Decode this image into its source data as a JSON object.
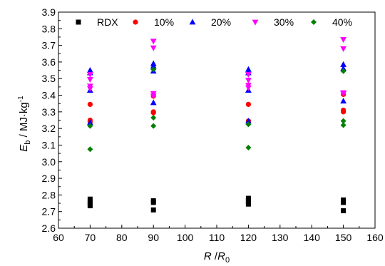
{
  "chart_data": {
    "type": "scatter",
    "xlabel": {
      "main": "R",
      "sep": " /",
      "sub_main": "R",
      "sub": "0"
    },
    "ylabel": {
      "main": "E",
      "sub": "b",
      "unit": " / MJ·kg",
      "sup": "-1"
    },
    "xlim": [
      60,
      160
    ],
    "ylim": [
      2.6,
      3.9
    ],
    "xticks": [
      60,
      70,
      80,
      90,
      100,
      110,
      120,
      130,
      140,
      150,
      160
    ],
    "yticks": [
      "2.6",
      "2.7",
      "2.8",
      "2.9",
      "3.0",
      "3.1",
      "3.2",
      "3.3",
      "3.4",
      "3.5",
      "3.6",
      "3.7",
      "3.8",
      "3.9"
    ],
    "legend_position": "top",
    "series": [
      {
        "name": "RDX",
        "marker": "square",
        "color": "#000000",
        "points": [
          [
            70,
            2.775
          ],
          [
            70,
            2.76
          ],
          [
            70,
            2.745
          ],
          [
            70,
            2.735
          ],
          [
            90,
            2.765
          ],
          [
            90,
            2.755
          ],
          [
            90,
            2.71
          ],
          [
            120,
            2.78
          ],
          [
            120,
            2.77
          ],
          [
            120,
            2.755
          ],
          [
            120,
            2.745
          ],
          [
            150,
            2.77
          ],
          [
            150,
            2.755
          ],
          [
            150,
            2.705
          ]
        ]
      },
      {
        "name": "10%",
        "marker": "circle",
        "color": "#ff0000",
        "points": [
          [
            70,
            3.345
          ],
          [
            70,
            3.25
          ],
          [
            70,
            3.24
          ],
          [
            90,
            3.395
          ],
          [
            90,
            3.3
          ],
          [
            90,
            3.295
          ],
          [
            120,
            3.345
          ],
          [
            120,
            3.245
          ],
          [
            150,
            3.405
          ],
          [
            150,
            3.31
          ],
          [
            150,
            3.3
          ]
        ]
      },
      {
        "name": "20%",
        "marker": "triangle-up",
        "color": "#0000ff",
        "points": [
          [
            70,
            3.55
          ],
          [
            70,
            3.535
          ],
          [
            70,
            3.43
          ],
          [
            70,
            3.235
          ],
          [
            90,
            3.59
          ],
          [
            90,
            3.575
          ],
          [
            90,
            3.545
          ],
          [
            90,
            3.355
          ],
          [
            120,
            3.555
          ],
          [
            120,
            3.535
          ],
          [
            120,
            3.43
          ],
          [
            120,
            3.245
          ],
          [
            150,
            3.585
          ],
          [
            150,
            3.56
          ],
          [
            150,
            3.365
          ]
        ]
      },
      {
        "name": "30%",
        "marker": "triangle-down",
        "color": "#ff00ff",
        "points": [
          [
            70,
            3.525
          ],
          [
            70,
            3.495
          ],
          [
            70,
            3.455
          ],
          [
            70,
            3.44
          ],
          [
            90,
            3.725
          ],
          [
            90,
            3.685
          ],
          [
            90,
            3.41
          ],
          [
            90,
            3.395
          ],
          [
            120,
            3.525
          ],
          [
            120,
            3.49
          ],
          [
            120,
            3.46
          ],
          [
            120,
            3.445
          ],
          [
            150,
            3.735
          ],
          [
            150,
            3.68
          ],
          [
            150,
            3.415
          ],
          [
            150,
            3.41
          ]
        ]
      },
      {
        "name": "40%",
        "marker": "diamond",
        "color": "#008000",
        "points": [
          [
            70,
            3.215
          ],
          [
            70,
            3.075
          ],
          [
            90,
            3.555
          ],
          [
            90,
            3.265
          ],
          [
            90,
            3.215
          ],
          [
            120,
            3.225
          ],
          [
            120,
            3.085
          ],
          [
            150,
            3.545
          ],
          [
            150,
            3.245
          ],
          [
            150,
            3.22
          ]
        ]
      }
    ]
  }
}
